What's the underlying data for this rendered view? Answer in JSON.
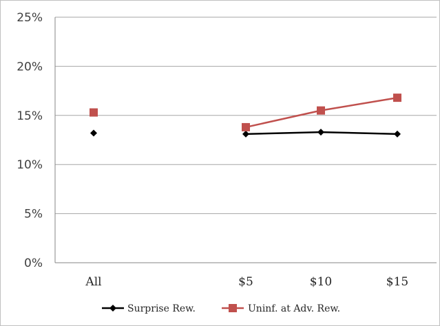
{
  "chart_data": {
    "type": "line",
    "title": "",
    "xlabel": "",
    "ylabel": "",
    "categories": [
      "All",
      "",
      "$5",
      "$10",
      "$15"
    ],
    "yticks": [
      "0%",
      "5%",
      "10%",
      "15%",
      "20%",
      "25%"
    ],
    "ylim": [
      0,
      25
    ],
    "grid": true,
    "legend_position": "bottom",
    "series": [
      {
        "name": "Surprise Rew.",
        "color": "#000000",
        "marker": "diamond",
        "values": [
          13.2,
          null,
          13.1,
          13.3,
          13.1
        ]
      },
      {
        "name": "Uninf. at Adv. Rew.",
        "color": "#c0504d",
        "marker": "square",
        "values": [
          15.3,
          null,
          13.8,
          15.5,
          16.8
        ]
      }
    ]
  }
}
